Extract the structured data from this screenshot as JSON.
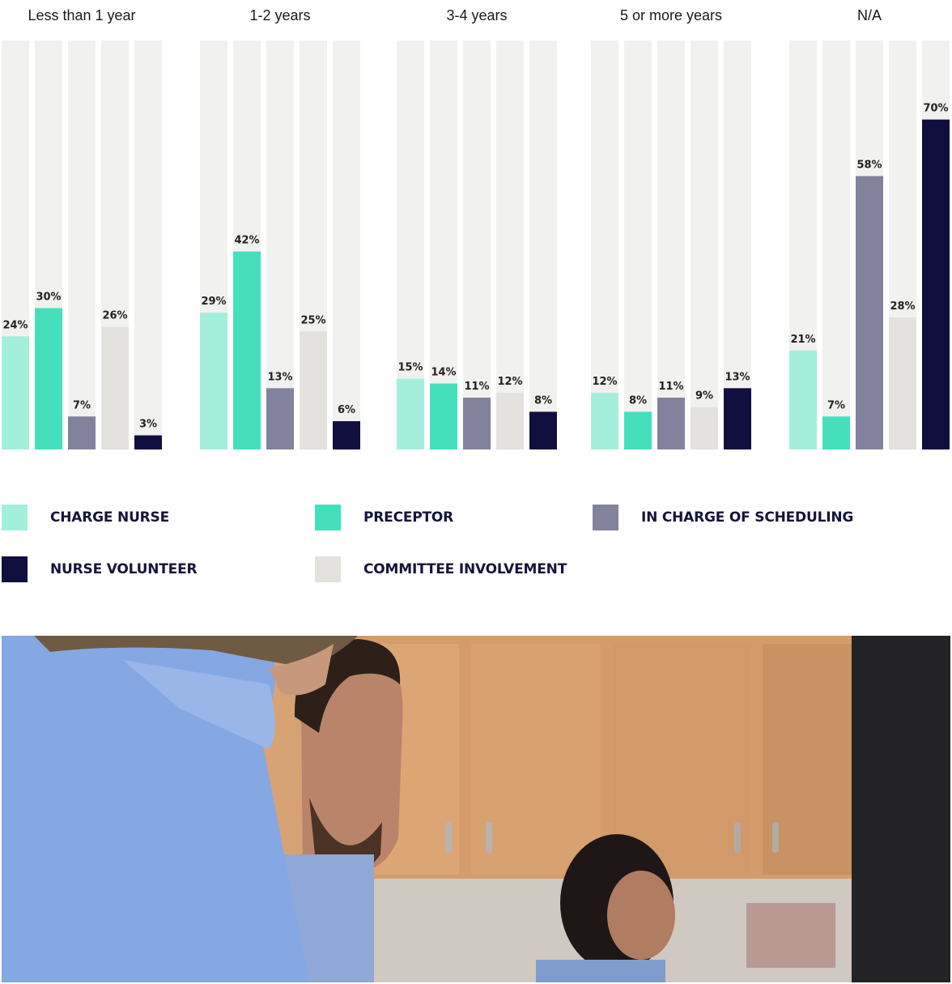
{
  "chart_data": {
    "type": "bar",
    "groups": [
      "Less than 1 year",
      "1-2 years",
      "3-4 years",
      "5 or more years",
      "N/A"
    ],
    "ylim": [
      0,
      100
    ],
    "series": [
      {
        "name": "CHARGE NURSE",
        "color": "#a3efdc",
        "values": [
          24,
          29,
          15,
          12,
          21
        ]
      },
      {
        "name": "PRECEPTOR",
        "color": "#45e0bb",
        "values": [
          30,
          42,
          14,
          8,
          7
        ]
      },
      {
        "name": "IN CHARGE OF SCHEDULING",
        "color": "#82829c",
        "values": [
          7,
          13,
          11,
          11,
          58
        ]
      },
      {
        "name": "COMMITTEE INVOLVEMENT",
        "color": "#e3e2df",
        "values": [
          26,
          25,
          12,
          9,
          28
        ]
      },
      {
        "name": "NURSE VOLUNTEER",
        "color": "#110f3d",
        "values": [
          3,
          6,
          8,
          13,
          70
        ]
      }
    ],
    "value_labels": [
      [
        "24%",
        "30%",
        "7%",
        "26%",
        "3%"
      ],
      [
        "29%",
        "42%",
        "13%",
        "25%",
        "6%"
      ],
      [
        "15%",
        "14%",
        "11%",
        "12%",
        "8%"
      ],
      [
        "12%",
        "8%",
        "11%",
        "9%",
        "13%"
      ],
      [
        "21%",
        "7%",
        "58%",
        "28%",
        "70%"
      ]
    ],
    "track_color": "#f1f1ef",
    "legend": [
      {
        "label": "CHARGE NURSE",
        "color": "#a3efdc"
      },
      {
        "label": "PRECEPTOR",
        "color": "#45e0bb"
      },
      {
        "label": "IN CHARGE OF SCHEDULING",
        "color": "#82829c"
      },
      {
        "label": "NURSE VOLUNTEER",
        "color": "#110f3d"
      },
      {
        "label": "COMMITTEE INVOLVEMENT",
        "color": "#e3e2df"
      }
    ]
  }
}
